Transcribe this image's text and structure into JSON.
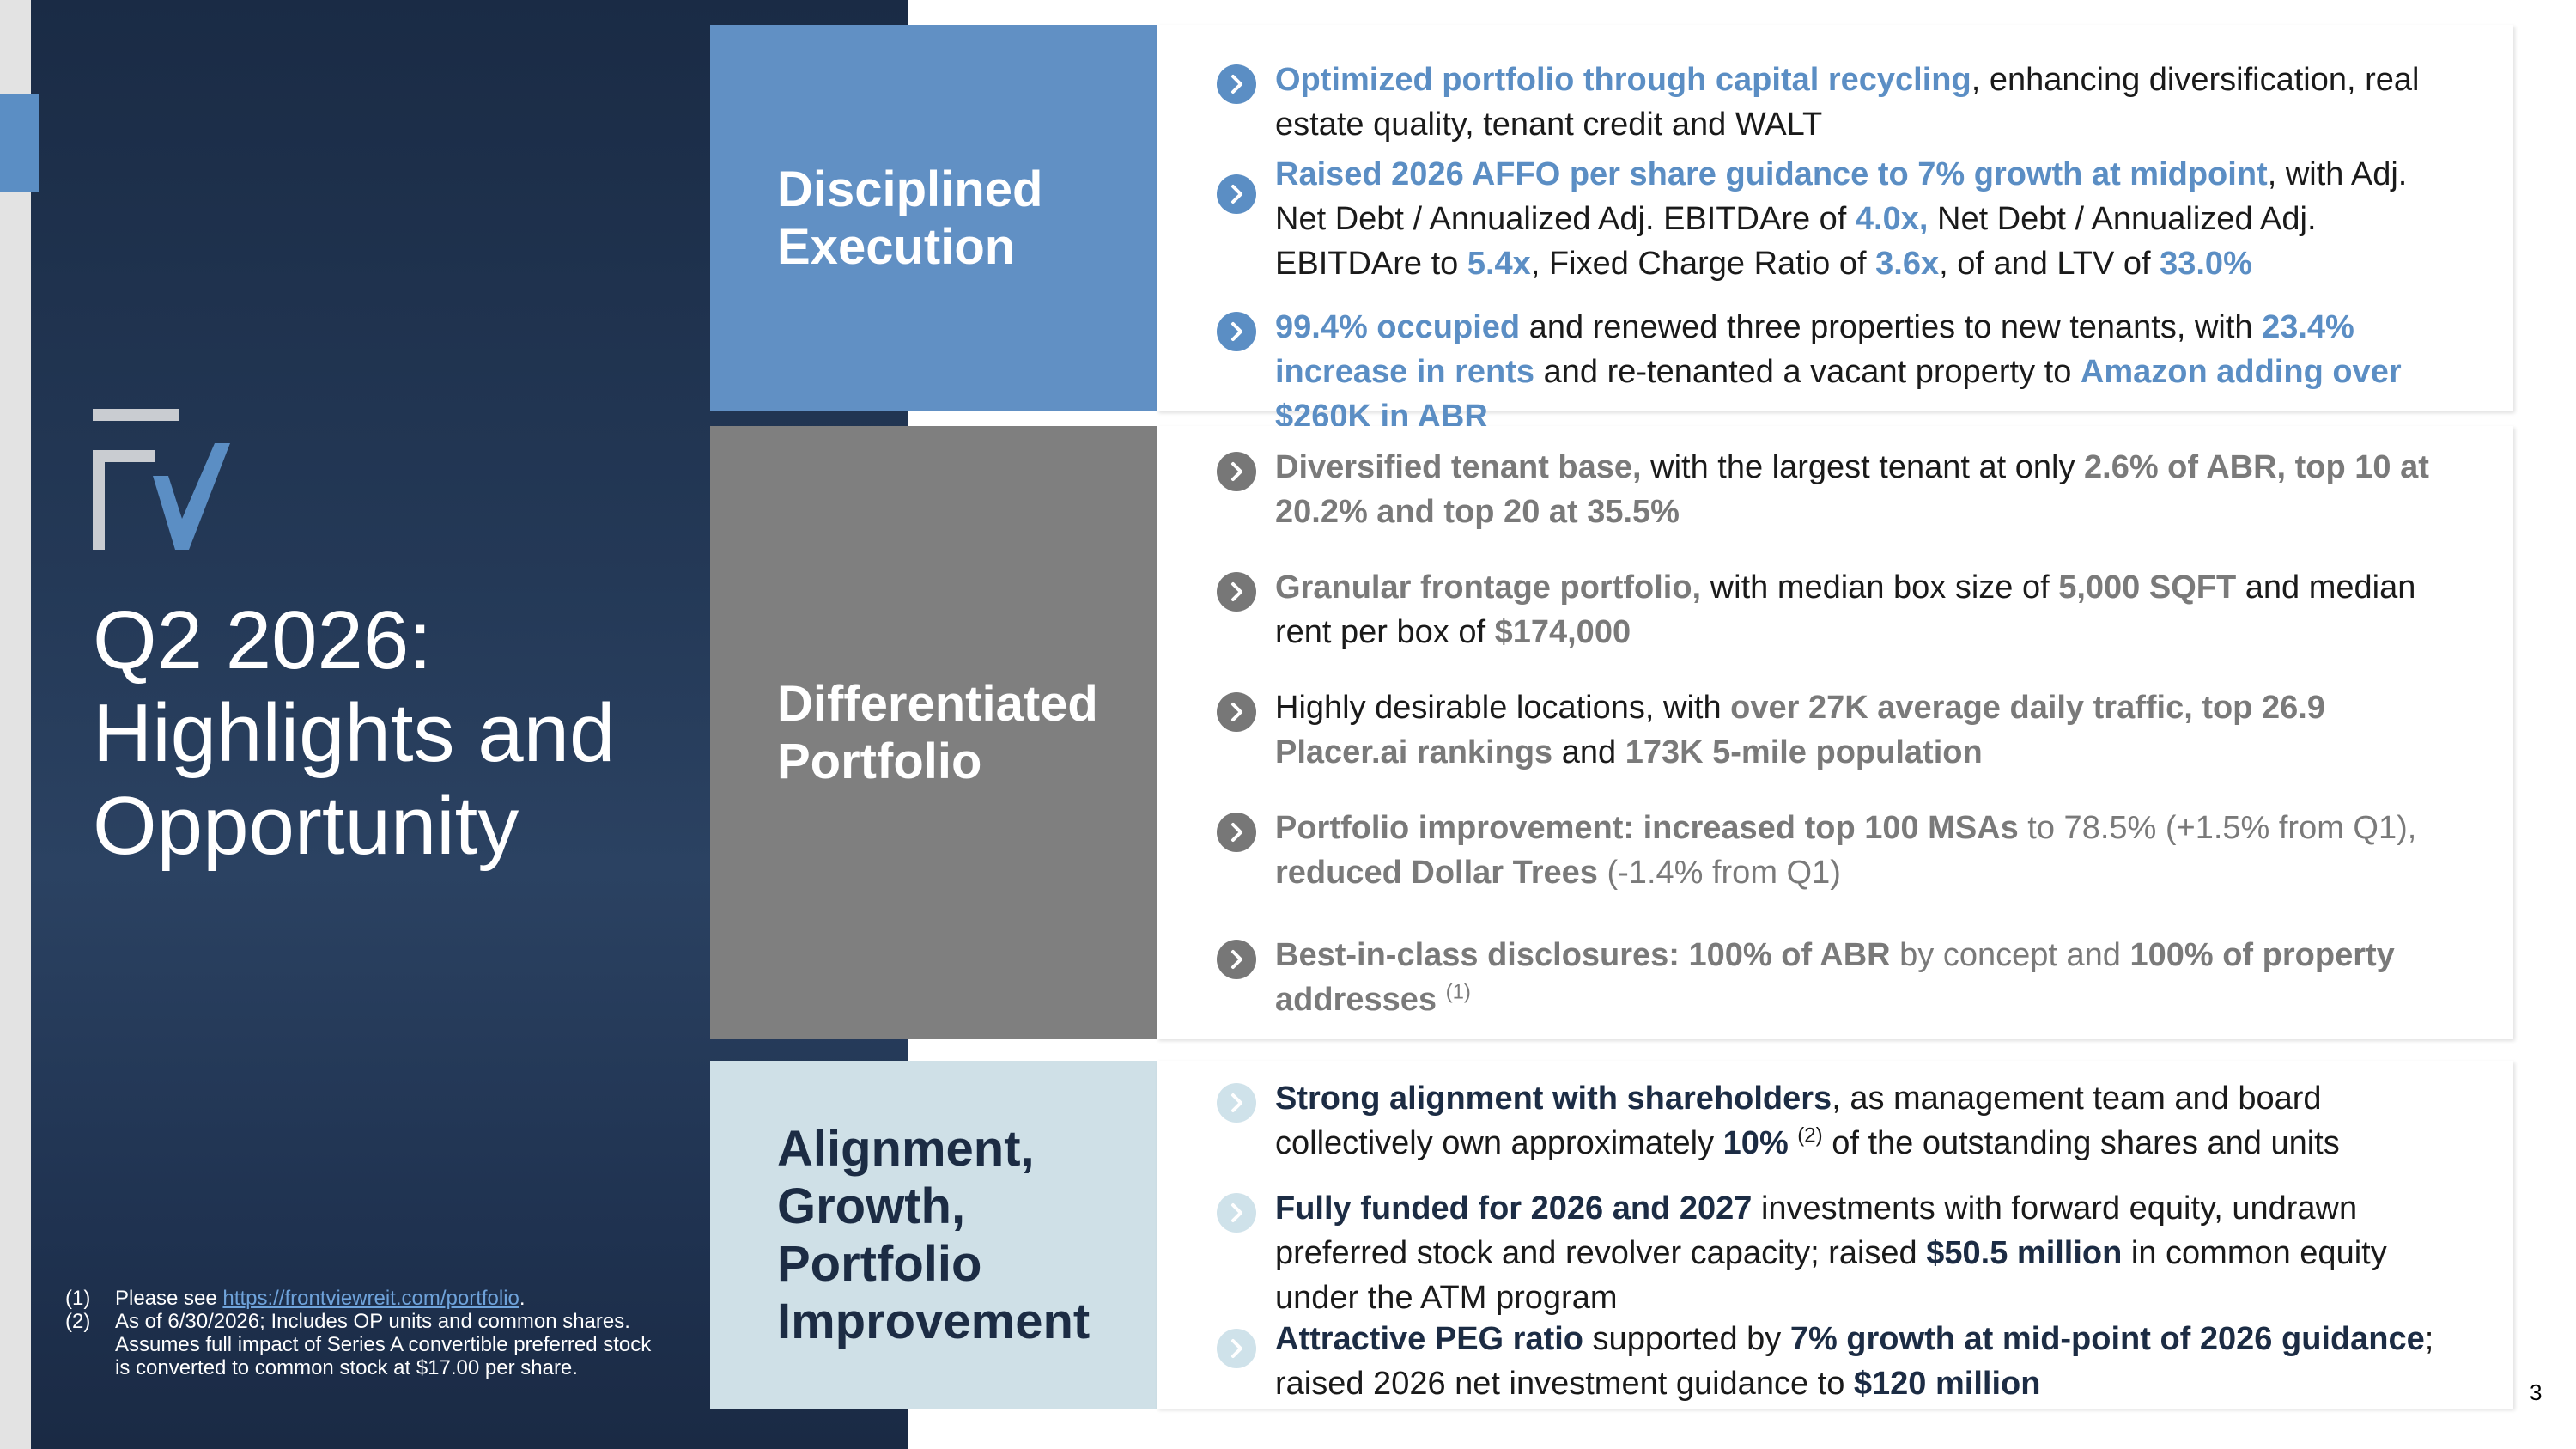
{
  "title": {
    "line1": "Q2 2026:",
    "line2": "Highlights and",
    "line3": "Opportunity"
  },
  "logo": "fv-logo",
  "footnotes": [
    {
      "num": "(1)",
      "pre": "Please see ",
      "link": "https://frontviewreit.com/portfolio",
      "post": "."
    },
    {
      "num": "(2)",
      "text": "As of 6/30/2026; Includes OP units and common shares. Assumes full impact of Series A convertible preferred stock is converted to common stock at $17.00 per share."
    }
  ],
  "sections": {
    "execution": {
      "label_l1": "Disciplined",
      "label_l2": "Execution",
      "color": "#6190c4",
      "b1": {
        "p1": "Optimized portfolio through capital recycling",
        "p2": ", enhancing diversification, real estate quality, tenant credit and WALT"
      },
      "b2": {
        "p1": "Raised 2026 AFFO per share guidance to 7% growth at midpoint",
        "p2": ", with  Adj. Net Debt / Annualized Adj. EBITDAre of ",
        "p3": "4.0x,",
        "p4": " Net Debt / Annualized Adj. EBITDAre to ",
        "p5": "5.4x",
        "p6": ", Fixed Charge Ratio of ",
        "p7": "3.6x",
        "p8": ", of and LTV of ",
        "p9": "33.0%"
      },
      "b3": {
        "p1": "99.4% occupied",
        "p2": " and renewed three properties to new tenants, with ",
        "p3": "23.4% increase in rents",
        "p4": " and re-tenanted a vacant property to ",
        "p5": "Amazon adding over $260K in ABR"
      }
    },
    "portfolio": {
      "label_l1": "Differentiated",
      "label_l2": "Portfolio",
      "color": "#7f7f7f",
      "b1": {
        "p1": "Diversified tenant base,",
        "p2": " with the largest tenant at only ",
        "p3": "2.6% of ABR, top 10 at 20.2% and top 20 at 35.5%"
      },
      "b2": {
        "p1": "Granular frontage portfolio,",
        "p2": " with median box size of ",
        "p3": "5,000 SQFT",
        "p4": " and median rent per box of ",
        "p5": "$174,000"
      },
      "b3": {
        "p1": "Highly desirable locations, with ",
        "p2": "over 27K average daily traffic, top 26.9 Placer.ai rankings",
        "p3": " and ",
        "p4": "173K 5-mile population"
      },
      "b4": {
        "p1": "Portfolio improvement: increased top 100 MSAs",
        "p2": " to 78.5% (+1.5% from Q1), ",
        "p3": "reduced Dollar Trees",
        "p4": " (-1.4% from Q1)"
      },
      "b5": {
        "p1": "Best-in-class disclosures: 100% of ABR",
        "p2": " by concept and ",
        "p3": "100% of property addresses",
        "sup": "(1)"
      }
    },
    "alignment": {
      "label_l1": "Alignment,",
      "label_l2": "Growth,",
      "label_l3": "Portfolio",
      "label_l4": "Improvement",
      "color": "#cfe0e7",
      "b1": {
        "p1": "Strong alignment with shareholders",
        "p2": ", as management team and board collectively own approximately ",
        "p3": "10%",
        "sup": "(2)",
        "p4": " of the outstanding shares and units"
      },
      "b2": {
        "p1": "Fully funded for 2026 and 2027",
        "p2": " investments with forward equity, undrawn preferred stock and revolver capacity; raised ",
        "p3": "$50.5 million",
        "p4": " in common equity under the ATM program"
      },
      "b3": {
        "p1": "Attractive PEG ratio",
        "p2": " supported by ",
        "p3": "7% growth at mid-point of 2026 guidance",
        "p4": "; raised 2026 net investment guidance to ",
        "p5": "$120 million"
      }
    }
  },
  "page_number": "3"
}
